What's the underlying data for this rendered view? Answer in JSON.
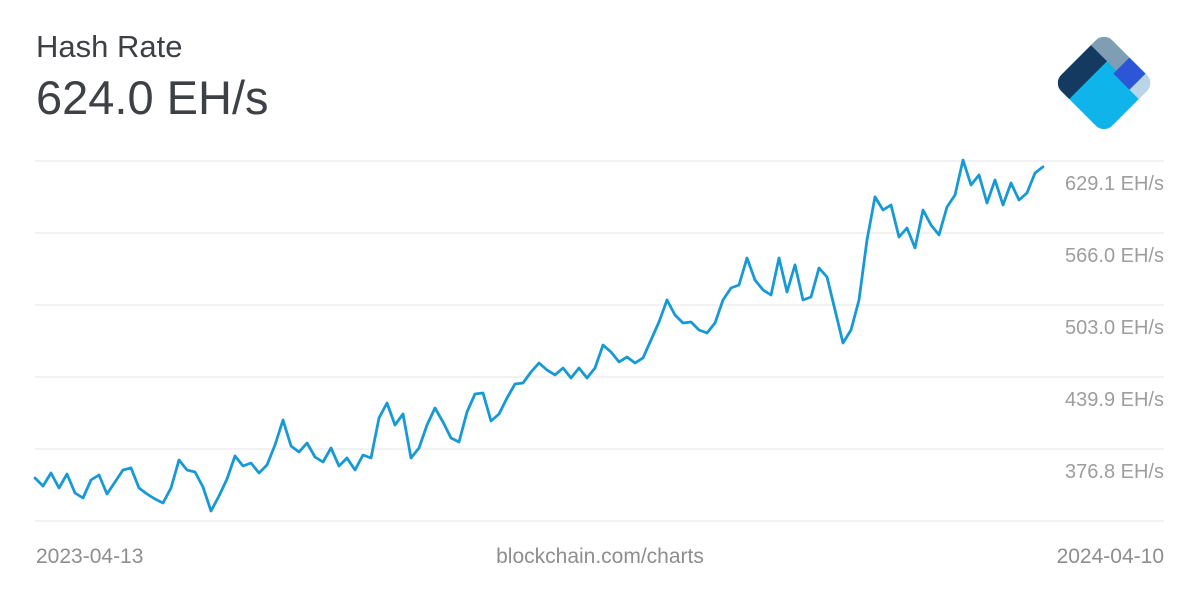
{
  "header": {
    "title": "Hash Rate",
    "current_value": "624.0 EH/s"
  },
  "logo": {
    "name": "blockchain.com",
    "colors": {
      "base_cyan": "#0FB4EA",
      "slate": "#7F9EB4",
      "navy": "#143A60",
      "royal_blue": "#2C55D8",
      "pale_blue": "#BAD5E7"
    }
  },
  "footer": {
    "start_date": "2023-04-13",
    "watermark": "blockchain.com/charts",
    "end_date": "2024-04-10"
  },
  "chart_data": {
    "type": "line",
    "title": "Hash Rate",
    "current_value_label": "624.0 EH/s",
    "unit": "EH/s",
    "x_start": "2023-04-13",
    "x_end": "2024-04-10",
    "grid": "horizontal-only",
    "legend": "none",
    "line_color": "#1799D5",
    "gridline_color": "#E4E4E4",
    "tick_label_color": "#9D9D9D",
    "y_range_displayed": [
      313.7,
      629.1
    ],
    "y_gridlines": [
      629.1,
      566.0,
      503.0,
      439.9,
      376.8,
      313.7
    ],
    "y_tick_labels": [
      "629.1 EH/s",
      "566.0 EH/s",
      "503.0 EH/s",
      "439.9 EH/s",
      "376.8 EH/s"
    ],
    "values": [
      351.3,
      344.3,
      355.7,
      342.5,
      354.8,
      338.1,
      333.8,
      349.5,
      353.9,
      337.3,
      347.8,
      358.3,
      360.1,
      342.5,
      337.3,
      332.9,
      329.4,
      342.5,
      367.1,
      358.3,
      356.5,
      343.4,
      322.4,
      335.5,
      350.4,
      370.6,
      361.8,
      364.4,
      355.7,
      362.7,
      380.2,
      402.1,
      379.3,
      374.1,
      382.0,
      369.7,
      365.3,
      377.6,
      361.8,
      368.8,
      358.3,
      371.4,
      368.8,
      403.9,
      417.0,
      397.7,
      407.4,
      368.8,
      377.6,
      397.7,
      412.6,
      400.4,
      386.3,
      382.8,
      409.1,
      424.9,
      425.8,
      401.2,
      407.4,
      421.4,
      433.7,
      434.5,
      444.2,
      452.1,
      445.9,
      441.6,
      447.7,
      438.9,
      447.7,
      438.9,
      447.7,
      467.8,
      461.7,
      453.0,
      457.3,
      452.1,
      456.5,
      472.2,
      488.0,
      507.3,
      494.1,
      487.1,
      488.0,
      481.0,
      478.4,
      487.1,
      507.3,
      517.8,
      520.4,
      544.1,
      524.8,
      516.1,
      511.7,
      544.1,
      514.3,
      538.0,
      507.3,
      509.9,
      535.3,
      527.4,
      498.5,
      469.6,
      481.0,
      507.3,
      559.9,
      597.6,
      586.2,
      590.5,
      562.5,
      570.4,
      552.9,
      586.2,
      573.0,
      564.3,
      588.8,
      599.3,
      630.0,
      608.1,
      616.8,
      592.3,
      612.5,
      590.5,
      609.8,
      594.9,
      601.1,
      618.6,
      624.0
    ]
  }
}
